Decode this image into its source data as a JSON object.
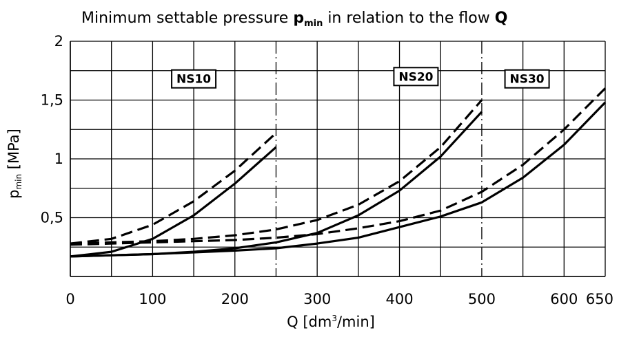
{
  "chart_data": {
    "type": "line",
    "title": {
      "prefix": "Minimum settable pressure ",
      "symbol": "p",
      "symbol_sub": "min",
      "middle": " in relation to the flow ",
      "flow_symbol": "Q"
    },
    "xlabel": {
      "prefix": "Q [dm",
      "sup": "3",
      "suffix": "/min]"
    },
    "ylabel": {
      "symbol": "p",
      "sub": "min",
      "unit": " [MPa]"
    },
    "xlim": [
      0,
      650
    ],
    "ylim": [
      0,
      2
    ],
    "x_ticks": [
      {
        "value": 0,
        "label": "0"
      },
      {
        "value": 100,
        "label": "100"
      },
      {
        "value": 200,
        "label": "200"
      },
      {
        "value": 300,
        "label": "300"
      },
      {
        "value": 400,
        "label": "400"
      },
      {
        "value": 500,
        "label": "500"
      },
      {
        "value": 600,
        "label": "600"
      },
      {
        "value": 650,
        "label": "650"
      }
    ],
    "y_ticks": [
      {
        "value": 0.5,
        "label": "0,5"
      },
      {
        "value": 1,
        "label": "1"
      },
      {
        "value": 1.5,
        "label": "1,5"
      },
      {
        "value": 2,
        "label": "2"
      }
    ],
    "grid": true,
    "grid_x_step": 50,
    "grid_y_step": 0.25,
    "size_limits": [
      250,
      500
    ],
    "size_labels": [
      {
        "label": "NS10",
        "x": 150,
        "y": 1.68
      },
      {
        "label": "NS20",
        "x": 420,
        "y": 1.7
      },
      {
        "label": "NS30",
        "x": 555,
        "y": 1.68
      }
    ],
    "series": [
      {
        "group": "NS10",
        "style": "solid",
        "x": [
          0,
          50,
          100,
          150,
          200,
          250
        ],
        "y": [
          0.17,
          0.21,
          0.32,
          0.52,
          0.79,
          1.1
        ]
      },
      {
        "group": "NS10",
        "style": "dashed",
        "x": [
          0,
          50,
          100,
          150,
          200,
          250
        ],
        "y": [
          0.28,
          0.32,
          0.44,
          0.64,
          0.9,
          1.22
        ]
      },
      {
        "group": "NS20",
        "style": "solid",
        "x": [
          0,
          50,
          100,
          150,
          200,
          250,
          300,
          350,
          400,
          450,
          500
        ],
        "y": [
          0.17,
          0.18,
          0.19,
          0.21,
          0.24,
          0.29,
          0.37,
          0.52,
          0.73,
          1.02,
          1.4
        ]
      },
      {
        "group": "NS20",
        "style": "dashed",
        "x": [
          0,
          50,
          100,
          150,
          200,
          250,
          300,
          350,
          400,
          450,
          500
        ],
        "y": [
          0.28,
          0.29,
          0.3,
          0.32,
          0.35,
          0.4,
          0.48,
          0.61,
          0.81,
          1.1,
          1.5
        ]
      },
      {
        "group": "NS30",
        "style": "solid",
        "x": [
          0,
          100,
          200,
          250,
          300,
          350,
          400,
          450,
          500,
          550,
          600,
          650
        ],
        "y": [
          0.17,
          0.19,
          0.22,
          0.24,
          0.28,
          0.33,
          0.42,
          0.51,
          0.63,
          0.84,
          1.12,
          1.48
        ]
      },
      {
        "group": "NS30",
        "style": "dashed",
        "x": [
          0,
          100,
          200,
          250,
          300,
          350,
          400,
          450,
          500,
          550,
          600,
          650
        ],
        "y": [
          0.27,
          0.29,
          0.31,
          0.33,
          0.36,
          0.41,
          0.47,
          0.56,
          0.72,
          0.95,
          1.25,
          1.6
        ]
      }
    ]
  }
}
